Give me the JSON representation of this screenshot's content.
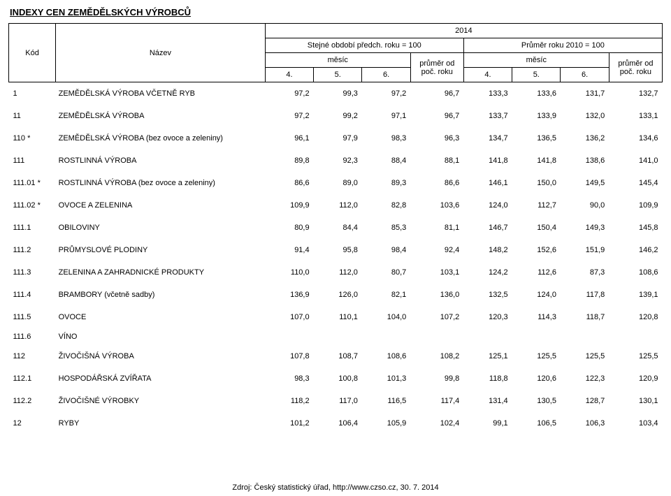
{
  "title": "INDEXY CEN ZEMĚDĚLSKÝCH VÝROBCŮ",
  "header": {
    "year": "2014",
    "kod": "Kód",
    "nazev": "Název",
    "block1": "Stejné období předch. roku = 100",
    "block2": "Průměr roku 2010 = 100",
    "mesic": "měsíc",
    "avg": "průměr od poč. roku",
    "m4": "4.",
    "m5": "5.",
    "m6": "6."
  },
  "rows": [
    {
      "code": "1",
      "name": "ZEMĚDĚLSKÁ VÝROBA VČETNĚ RYB",
      "v": [
        "97,2",
        "99,3",
        "97,2",
        "96,7",
        "133,3",
        "133,6",
        "131,7",
        "132,7"
      ]
    },
    {
      "code": "11",
      "name": "ZEMĚDĚLSKÁ VÝROBA",
      "v": [
        "97,2",
        "99,2",
        "97,1",
        "96,7",
        "133,7",
        "133,9",
        "132,0",
        "133,1"
      ]
    },
    {
      "code": "110 *",
      "name": "ZEMĚDĚLSKÁ VÝROBA (bez ovoce a zeleniny)",
      "v": [
        "96,1",
        "97,9",
        "98,3",
        "96,3",
        "134,7",
        "136,5",
        "136,2",
        "134,6"
      ]
    },
    {
      "code": "111",
      "name": "ROSTLINNÁ VÝROBA",
      "v": [
        "89,8",
        "92,3",
        "88,4",
        "88,1",
        "141,8",
        "141,8",
        "138,6",
        "141,0"
      ]
    },
    {
      "code": "111.01 *",
      "name": "ROSTLINNÁ VÝROBA (bez ovoce a zeleniny)",
      "v": [
        "86,6",
        "89,0",
        "89,3",
        "86,6",
        "146,1",
        "150,0",
        "149,5",
        "145,4"
      ]
    },
    {
      "code": "111.02 *",
      "name": "OVOCE A ZELENINA",
      "v": [
        "109,9",
        "112,0",
        "82,8",
        "103,6",
        "124,0",
        "112,7",
        "90,0",
        "109,9"
      ]
    },
    {
      "code": "111.1",
      "name": "OBILOVINY",
      "v": [
        "80,9",
        "84,4",
        "85,3",
        "81,1",
        "146,7",
        "150,4",
        "149,3",
        "145,8"
      ]
    },
    {
      "code": "111.2",
      "name": "PRŮMYSLOVÉ PLODINY",
      "v": [
        "91,4",
        "95,8",
        "98,4",
        "92,4",
        "148,2",
        "152,6",
        "151,9",
        "146,2"
      ]
    },
    {
      "code": "111.3",
      "name": "ZELENINA A ZAHRADNICKÉ PRODUKTY",
      "v": [
        "110,0",
        "112,0",
        "80,7",
        "103,1",
        "124,2",
        "112,6",
        "87,3",
        "108,6"
      ]
    },
    {
      "code": "111.4",
      "name": "BRAMBORY (včetně sadby)",
      "v": [
        "136,9",
        "126,0",
        "82,1",
        "136,0",
        "132,5",
        "124,0",
        "117,8",
        "139,1"
      ]
    },
    {
      "code": "111.5",
      "name": "OVOCE",
      "v": [
        "107,0",
        "110,1",
        "104,0",
        "107,2",
        "120,3",
        "114,3",
        "118,7",
        "120,8"
      ]
    },
    {
      "code": "111.6",
      "name": "VÍNO",
      "v": [
        "",
        "",
        "",
        "",
        "",
        "",
        "",
        ""
      ]
    },
    {
      "code": "112",
      "name": "ŽIVOČIŠNÁ VÝROBA",
      "v": [
        "107,8",
        "108,7",
        "108,6",
        "108,2",
        "125,1",
        "125,5",
        "125,5",
        "125,5"
      ]
    },
    {
      "code": "112.1",
      "name": "HOSPODÁŘSKÁ ZVÍŘATA",
      "v": [
        "98,3",
        "100,8",
        "101,3",
        "99,8",
        "118,8",
        "120,6",
        "122,3",
        "120,9"
      ]
    },
    {
      "code": "112.2",
      "name": "ŽIVOČIŠNÉ VÝROBKY",
      "v": [
        "118,2",
        "117,0",
        "116,5",
        "117,4",
        "131,4",
        "130,5",
        "128,7",
        "130,1"
      ]
    },
    {
      "code": "12",
      "name": "RYBY",
      "v": [
        "101,2",
        "106,4",
        "105,9",
        "102,4",
        "99,1",
        "106,5",
        "106,3",
        "103,4"
      ]
    }
  ],
  "footer": "Zdroj: Český statistický úřad, http://www.czso.cz, 30. 7. 2014"
}
